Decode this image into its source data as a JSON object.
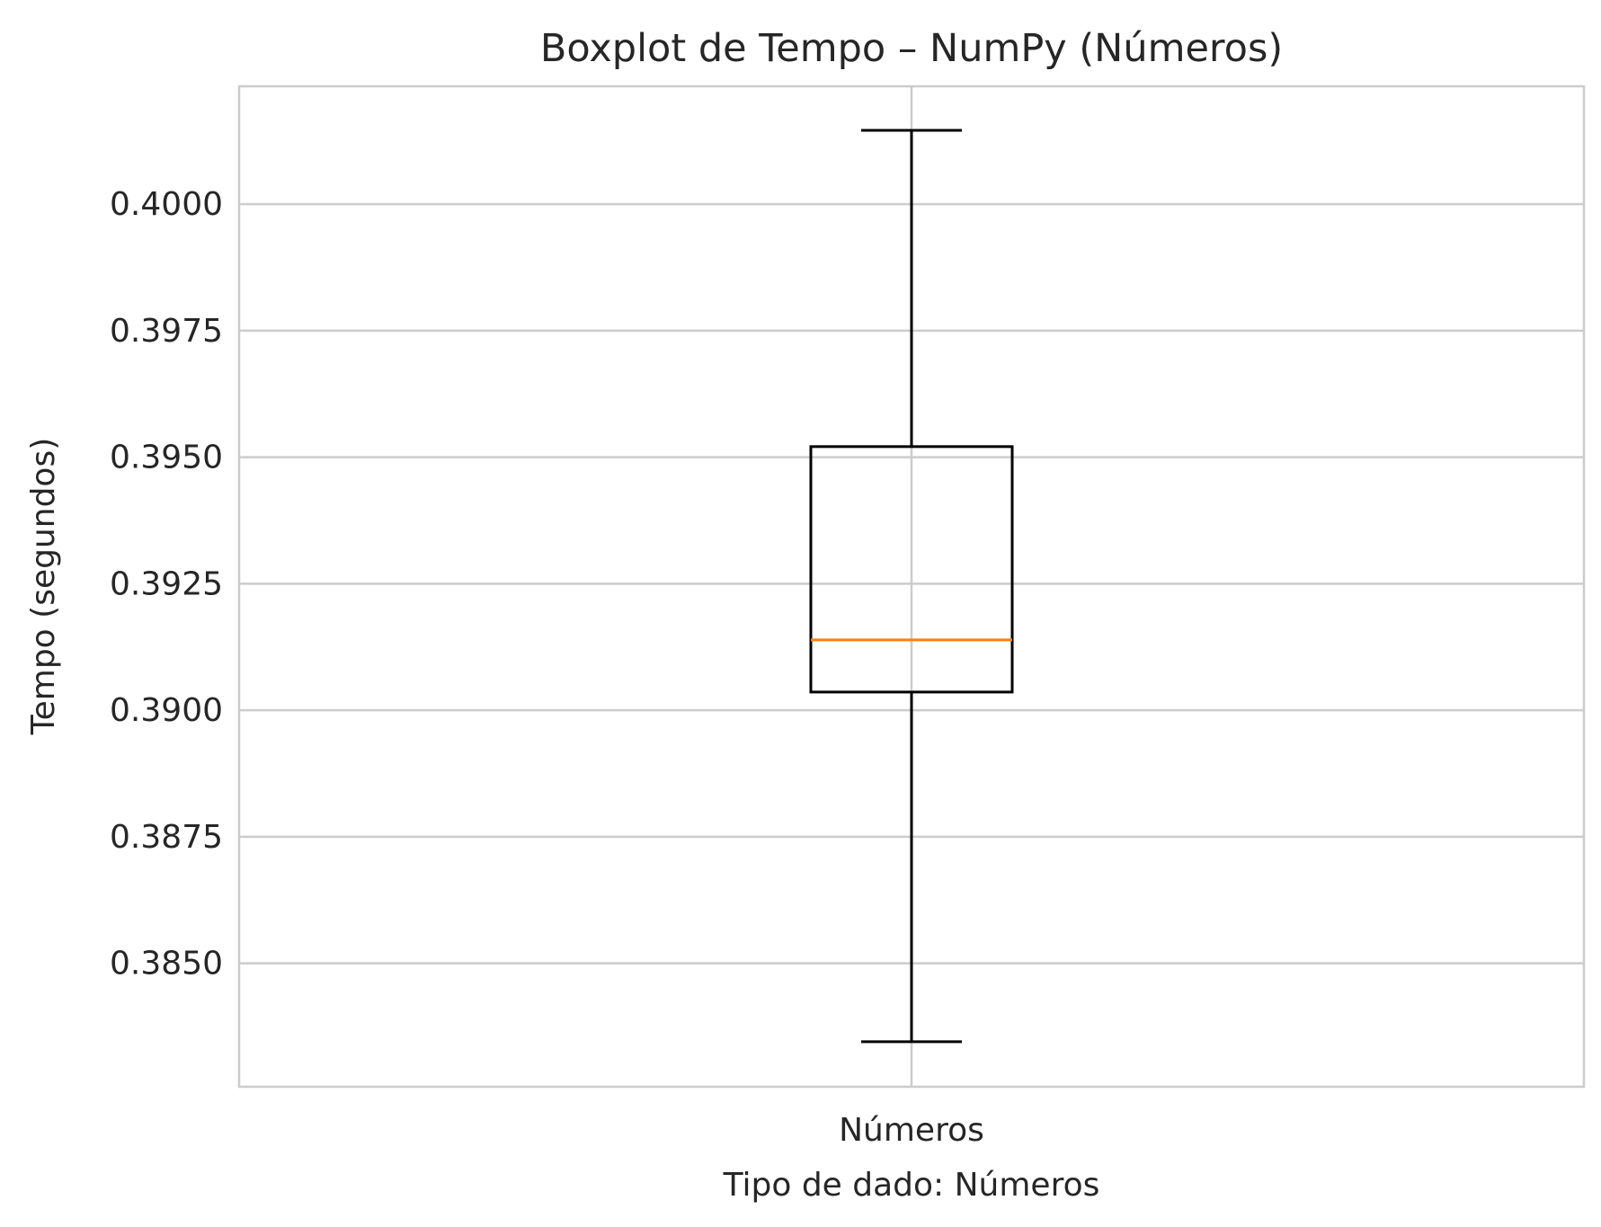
{
  "chart_data": {
    "type": "boxplot",
    "title": "Boxplot de Tempo – NumPy (Números)",
    "xlabel": "Tipo de dado: Números",
    "ylabel": "Tempo (segundos)",
    "categories": [
      "Números"
    ],
    "boxes": [
      {
        "category": "Números",
        "whisker_low": 0.38345,
        "q1": 0.39036,
        "median": 0.39139,
        "q3": 0.39521,
        "whisker_high": 0.40146
      }
    ],
    "ylim": [
      0.38256,
      0.40233
    ],
    "yticks": [
      0.385,
      0.3875,
      0.39,
      0.3925,
      0.395,
      0.3975,
      0.4
    ],
    "ytick_labels": [
      "0.3850",
      "0.3875",
      "0.3900",
      "0.3925",
      "0.3950",
      "0.3975",
      "0.4000"
    ],
    "grid": true,
    "colors": {
      "box": "#000000",
      "median": "#ff7f0e",
      "grid": "#cccccc",
      "spine": "#cccccc",
      "text": "#262626"
    }
  }
}
